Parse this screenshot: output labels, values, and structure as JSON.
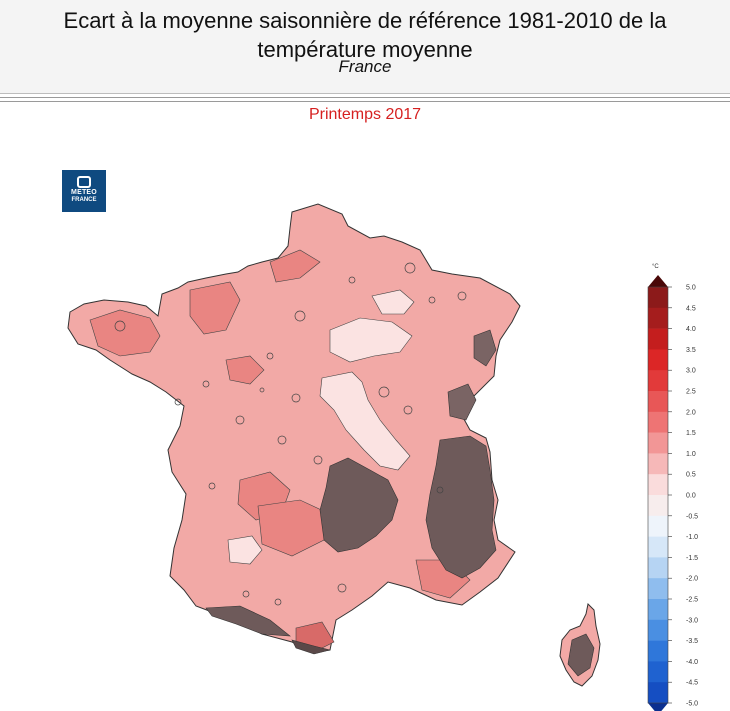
{
  "header": {
    "title_line1": "Ecart à la moyenne saisonnière de référence 1981-2010 de la",
    "title_line2": "température moyenne",
    "region": "France"
  },
  "subtitle": "Printemps 2017",
  "logo": {
    "line1": "METEO",
    "line2": "FRANCE",
    "icon": "meteo-france-logo-icon"
  },
  "legend": {
    "unit": "°C",
    "ticks": [
      "5.0",
      "4.5",
      "4.0",
      "3.5",
      "3.0",
      "2.5",
      "2.0",
      "1.5",
      "1.0",
      "0.5",
      "0.0",
      "-0.5",
      "-1.0",
      "-1.5",
      "-2.0",
      "-2.5",
      "-3.0",
      "-3.5",
      "-4.0",
      "-4.5",
      "-5.0"
    ],
    "colors": [
      "#8c1a1a",
      "#a51d1d",
      "#c41e1e",
      "#dc2626",
      "#e23a3a",
      "#e85757",
      "#ee7474",
      "#f29696",
      "#f6b8b8",
      "#fadcdc",
      "#f7eded",
      "#eef4fb",
      "#d6e7f8",
      "#b6d4f3",
      "#8fbdee",
      "#6aa6e8",
      "#4a8fe2",
      "#2f77da",
      "#1f62d0",
      "#154ec2"
    ],
    "arrow_top_color": "#4a0808",
    "arrow_bottom_color": "#0b2f8f"
  },
  "map": {
    "base_fill": "#f2a9a6",
    "light_fill": "#fbe3e2",
    "warm_fill": "#e98582",
    "mountain_fill": "#6e5a5a",
    "outline_color": "#333333"
  }
}
